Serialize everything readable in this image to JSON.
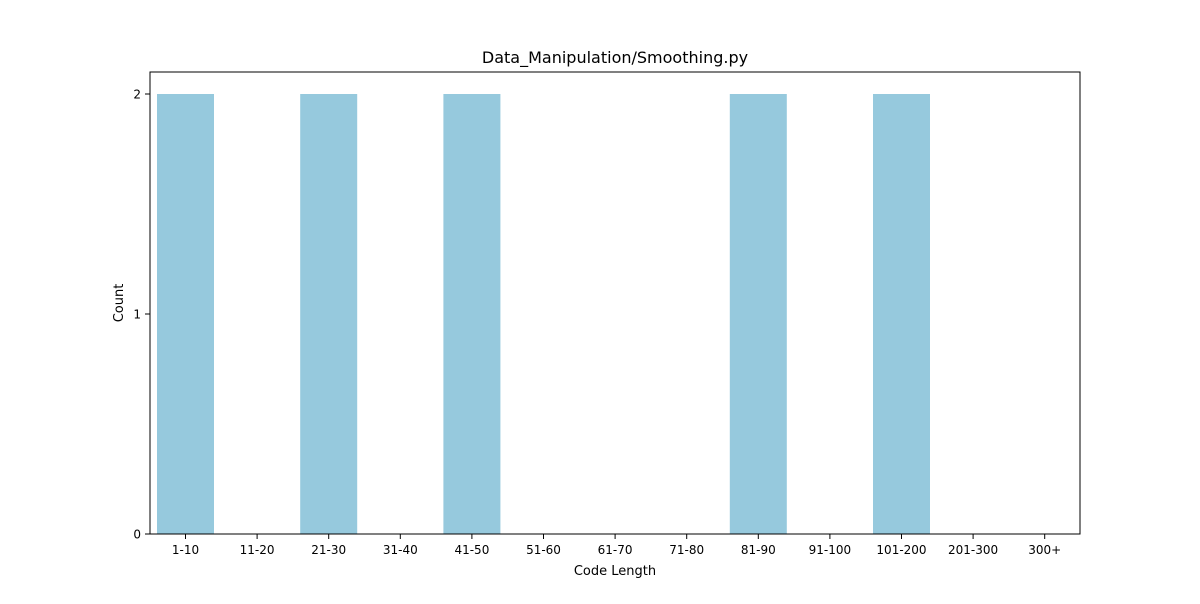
{
  "chart_data": {
    "type": "bar",
    "title": "Data_Manipulation/Smoothing.py",
    "xlabel": "Code Length",
    "ylabel": "Count",
    "categories": [
      "1-10",
      "11-20",
      "21-30",
      "31-40",
      "41-50",
      "51-60",
      "61-70",
      "71-80",
      "81-90",
      "91-100",
      "101-200",
      "201-300",
      "300+"
    ],
    "values": [
      2,
      0,
      2,
      0,
      2,
      0,
      0,
      0,
      2,
      0,
      2,
      0,
      0
    ],
    "ylim": [
      0,
      2.1
    ],
    "yticks": [
      0,
      1,
      2
    ],
    "bar_color": "#96c9dd",
    "grid": false,
    "legend": "none"
  }
}
